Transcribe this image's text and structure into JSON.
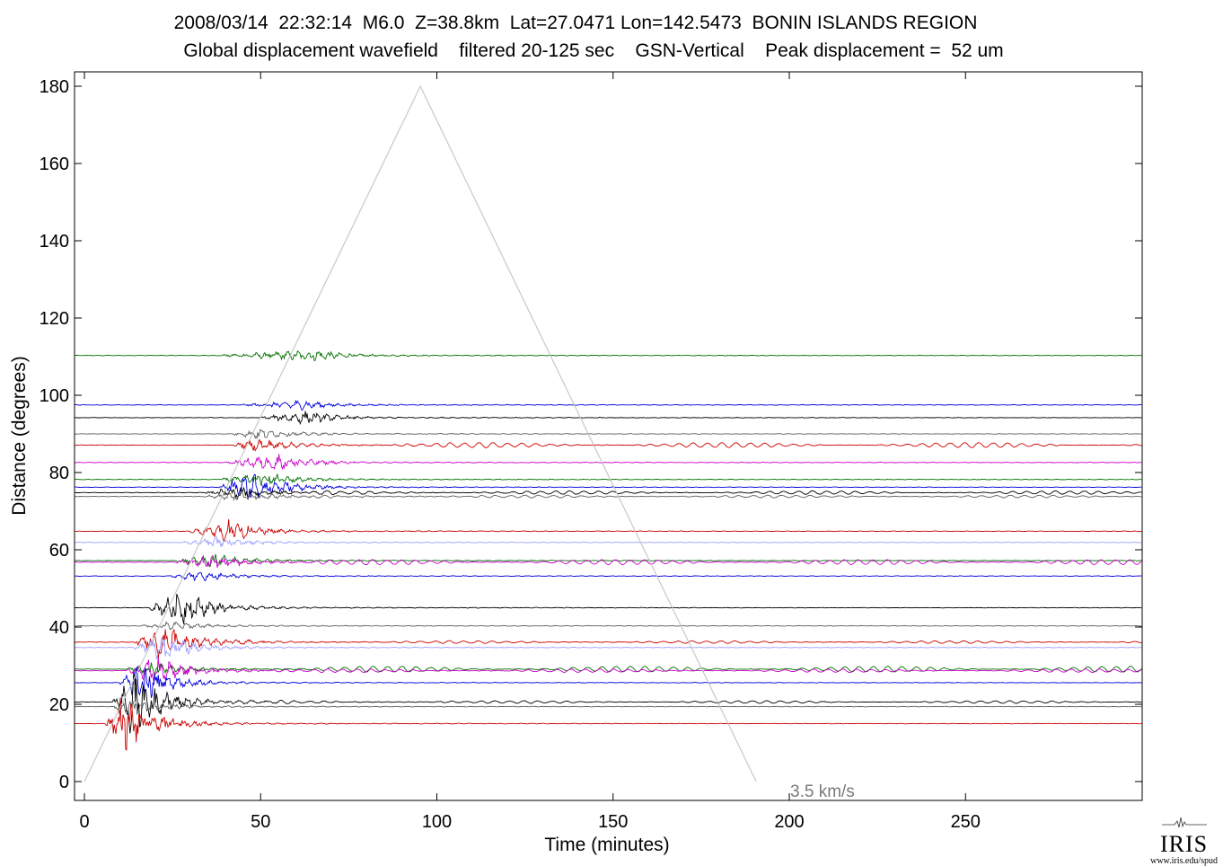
{
  "title_line1": "2008/03/14  22:32:14  M6.0  Z=38.8km  Lat=27.0471 Lon=142.5473  BONIN ISLANDS REGION",
  "title_line2": "Global displacement wavefield    filtered 20-125 sec    GSN-Vertical    Peak displacement =  52 um",
  "logo_text": "IRIS",
  "logo_url": "www.iris.edu/spud",
  "chart_data": {
    "type": "line",
    "xlabel": "Time (minutes)",
    "ylabel": "Distance (degrees)",
    "xlim": [
      -3,
      300
    ],
    "ylim": [
      -5,
      186
    ],
    "xticks": [
      0,
      50,
      100,
      150,
      200,
      250
    ],
    "yticks": [
      0,
      20,
      40,
      60,
      80,
      100,
      120,
      140,
      160,
      180
    ],
    "grid": false,
    "reference_line": {
      "label": "3.5 km/s",
      "color": "#c8c8c8",
      "points": [
        [
          0,
          0
        ],
        [
          95.3,
          180
        ],
        [
          190.6,
          0
        ]
      ]
    },
    "series": [
      {
        "distance": 110.3,
        "color": "#007000",
        "onset": 38,
        "peak": 66,
        "amp": 2.2,
        "late_wave": 0
      },
      {
        "distance": 97.5,
        "color": "#0000dd",
        "onset": 45,
        "peak": 62,
        "amp": 1.8,
        "late_wave": 0
      },
      {
        "distance": 94.2,
        "color": "#000000",
        "onset": 50,
        "peak": 63,
        "amp": 2.4,
        "late_wave": 0
      },
      {
        "distance": 90.0,
        "color": "#606060",
        "onset": 42,
        "peak": 50,
        "amp": 2.0,
        "late_wave": 0
      },
      {
        "distance": 87.1,
        "color": "#cc0000",
        "onset": 42,
        "peak": 50,
        "amp": 2.6,
        "late_wave": 1.2
      },
      {
        "distance": 82.6,
        "color": "#cc00cc",
        "onset": 40,
        "peak": 55,
        "amp": 3.5,
        "late_wave": 0
      },
      {
        "distance": 78.2,
        "color": "#007000",
        "onset": 38,
        "peak": 52,
        "amp": 2.6,
        "late_wave": 0
      },
      {
        "distance": 76.2,
        "color": "#0000dd",
        "onset": 38,
        "peak": 48,
        "amp": 6.0,
        "late_wave": 0
      },
      {
        "distance": 74.8,
        "color": "#000000",
        "onset": 34,
        "peak": 44,
        "amp": 2.4,
        "late_wave": 0.8
      },
      {
        "distance": 73.8,
        "color": "#606060",
        "onset": 34,
        "peak": 45,
        "amp": 1.8,
        "late_wave": 0.6
      },
      {
        "distance": 64.8,
        "color": "#cc0000",
        "onset": 30,
        "peak": 41,
        "amp": 4.5,
        "late_wave": 0
      },
      {
        "distance": 61.9,
        "color": "#a0a0ff",
        "onset": 28,
        "peak": 38,
        "amp": 2.2,
        "late_wave": 0
      },
      {
        "distance": 57.2,
        "color": "#007000",
        "onset": 26,
        "peak": 36,
        "amp": 3.0,
        "late_wave": 0
      },
      {
        "distance": 56.8,
        "color": "#cc00cc",
        "onset": 26,
        "peak": 37,
        "amp": 2.6,
        "late_wave": 1.2
      },
      {
        "distance": 53.2,
        "color": "#0000dd",
        "onset": 24,
        "peak": 33,
        "amp": 2.0,
        "late_wave": 0
      },
      {
        "distance": 45.0,
        "color": "#000000",
        "onset": 18,
        "peak": 28,
        "amp": 7.0,
        "late_wave": 0
      },
      {
        "distance": 40.3,
        "color": "#606060",
        "onset": 16,
        "peak": 25,
        "amp": 1.6,
        "late_wave": 0
      },
      {
        "distance": 36.1,
        "color": "#cc0000",
        "onset": 14,
        "peak": 22,
        "amp": 8.0,
        "late_wave": 0.6
      },
      {
        "distance": 34.7,
        "color": "#a0a0ff",
        "onset": 14,
        "peak": 22,
        "amp": 6.0,
        "late_wave": 0
      },
      {
        "distance": 29.1,
        "color": "#007000",
        "onset": 12,
        "peak": 19,
        "amp": 3.0,
        "late_wave": 1.4
      },
      {
        "distance": 28.7,
        "color": "#cc00cc",
        "onset": 12,
        "peak": 20,
        "amp": 6.0,
        "late_wave": 0.8
      },
      {
        "distance": 25.6,
        "color": "#0000dd",
        "onset": 10,
        "peak": 16,
        "amp": 9.0,
        "late_wave": 0
      },
      {
        "distance": 20.6,
        "color": "#000000",
        "onset": 8,
        "peak": 13,
        "amp": 14.0,
        "late_wave": 0.6
      },
      {
        "distance": 19.4,
        "color": "#606060",
        "onset": 8,
        "peak": 13,
        "amp": 4.0,
        "late_wave": 0
      },
      {
        "distance": 15.0,
        "color": "#cc0000",
        "onset": 6,
        "peak": 11,
        "amp": 12.0,
        "late_wave": 0
      }
    ]
  }
}
